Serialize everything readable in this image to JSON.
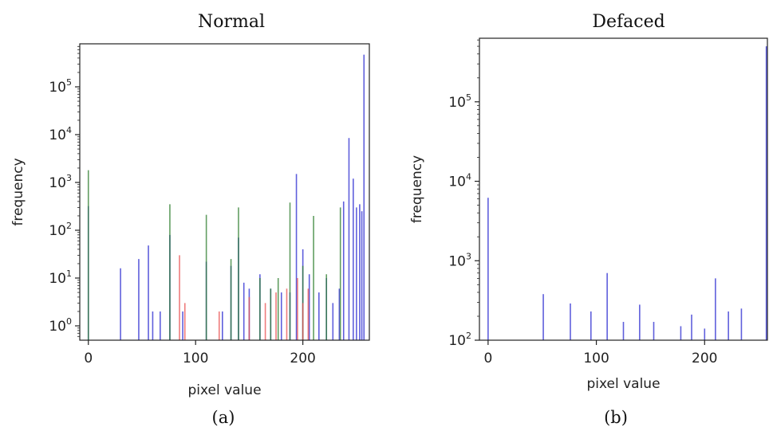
{
  "charts": [
    {
      "title": "Normal",
      "caption": "(a)",
      "xlabel": "pixel value",
      "ylabel": "frequency",
      "xlim": [
        -8,
        262
      ],
      "ylim_log10": [
        -0.3,
        5.9
      ],
      "xticks": [
        {
          "value": 0,
          "label": "0"
        },
        {
          "value": 100,
          "label": "100"
        },
        {
          "value": 200,
          "label": "200"
        }
      ],
      "yticks": [
        {
          "exp": 0,
          "base": "10",
          "power": "0"
        },
        {
          "exp": 1,
          "base": "10",
          "power": "1"
        },
        {
          "exp": 2,
          "base": "10",
          "power": "2"
        },
        {
          "exp": 3,
          "base": "10",
          "power": "3"
        },
        {
          "exp": 4,
          "base": "10",
          "power": "4"
        },
        {
          "exp": 5,
          "base": "10",
          "power": "5"
        }
      ],
      "series": [
        {
          "color": "#2a2ad0",
          "values": [
            [
              0,
              320
            ],
            [
              30,
              16
            ],
            [
              47,
              25
            ],
            [
              56,
              48
            ],
            [
              60,
              2
            ],
            [
              67,
              2
            ],
            [
              76,
              80
            ],
            [
              88,
              2
            ],
            [
              110,
              22
            ],
            [
              125,
              2
            ],
            [
              133,
              18
            ],
            [
              140,
              70
            ],
            [
              145,
              8
            ],
            [
              150,
              6
            ],
            [
              160,
              12
            ],
            [
              170,
              6
            ],
            [
              180,
              5
            ],
            [
              188,
              5
            ],
            [
              194,
              1500
            ],
            [
              200,
              40
            ],
            [
              206,
              12
            ],
            [
              215,
              5
            ],
            [
              222,
              10
            ],
            [
              228,
              3
            ],
            [
              234,
              6
            ],
            [
              238,
              400
            ],
            [
              243,
              8500
            ],
            [
              247,
              1200
            ],
            [
              250,
              300
            ],
            [
              253,
              350
            ],
            [
              255,
              250
            ],
            [
              257,
              470000
            ]
          ]
        },
        {
          "color": "#2e7d2e",
          "values": [
            [
              0,
              1800
            ],
            [
              76,
              350
            ],
            [
              110,
              210
            ],
            [
              133,
              25
            ],
            [
              140,
              300
            ],
            [
              160,
              10
            ],
            [
              170,
              6
            ],
            [
              177,
              10
            ],
            [
              188,
              380
            ],
            [
              200,
              18
            ],
            [
              210,
              200
            ],
            [
              222,
              12
            ],
            [
              235,
              300
            ]
          ]
        },
        {
          "color": "#e85050",
          "values": [
            [
              85,
              30
            ],
            [
              90,
              3
            ],
            [
              122,
              2
            ],
            [
              150,
              4
            ],
            [
              165,
              3
            ],
            [
              175,
              5
            ],
            [
              185,
              6
            ],
            [
              195,
              10
            ],
            [
              200,
              3
            ],
            [
              205,
              6
            ]
          ]
        }
      ]
    },
    {
      "title": "Defaced",
      "caption": "(b)",
      "xlabel": "pixel value",
      "ylabel": "frequency",
      "xlim": [
        -8,
        258
      ],
      "ylim_log10": [
        2.0,
        5.8
      ],
      "xticks": [
        {
          "value": 0,
          "label": "0"
        },
        {
          "value": 100,
          "label": "100"
        },
        {
          "value": 200,
          "label": "200"
        }
      ],
      "yticks": [
        {
          "exp": 2,
          "base": "10",
          "power": "2"
        },
        {
          "exp": 3,
          "base": "10",
          "power": "3"
        },
        {
          "exp": 4,
          "base": "10",
          "power": "4"
        },
        {
          "exp": 5,
          "base": "10",
          "power": "5"
        }
      ],
      "series": [
        {
          "color": "#2a2ad0",
          "values": [
            [
              0,
              6200
            ],
            [
              51,
              380
            ],
            [
              76,
              290
            ],
            [
              95,
              230
            ],
            [
              110,
              700
            ],
            [
              125,
              170
            ],
            [
              140,
              280
            ],
            [
              153,
              170
            ],
            [
              178,
              150
            ],
            [
              188,
              210
            ],
            [
              200,
              140
            ],
            [
              210,
              600
            ],
            [
              222,
              230
            ],
            [
              234,
              250
            ],
            [
              257,
              500000
            ]
          ]
        }
      ]
    }
  ]
}
